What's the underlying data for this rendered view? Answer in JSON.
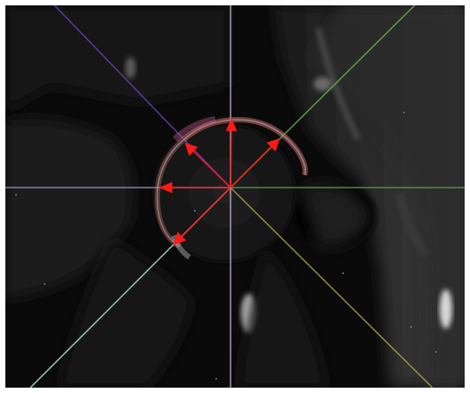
{
  "image": {
    "kind": "MRI coronal slice of hip joint with radial measurement overlay"
  },
  "overlay": {
    "lines": [
      {
        "name": "vertical-axis",
        "color": "#d8c8e0"
      },
      {
        "name": "horizontal-axis-left",
        "color": "#a09ad0"
      },
      {
        "name": "horizontal-axis-right",
        "color": "#4f9a3a"
      },
      {
        "name": "diagonal-upper-left",
        "color": "#6b3fb0"
      },
      {
        "name": "diagonal-upper-right",
        "color": "#66b04a"
      },
      {
        "name": "diagonal-lower-left",
        "color": "#b8e0d8"
      },
      {
        "name": "diagonal-lower-right",
        "color": "#a8a04a"
      }
    ],
    "arrow_color": "#ff1a1a",
    "arc_outer_color": "#c86a6a",
    "arc_inner_color": "#b0a0a0",
    "arc_lower_color": "#9a9a9a",
    "arrow_count": 5
  }
}
